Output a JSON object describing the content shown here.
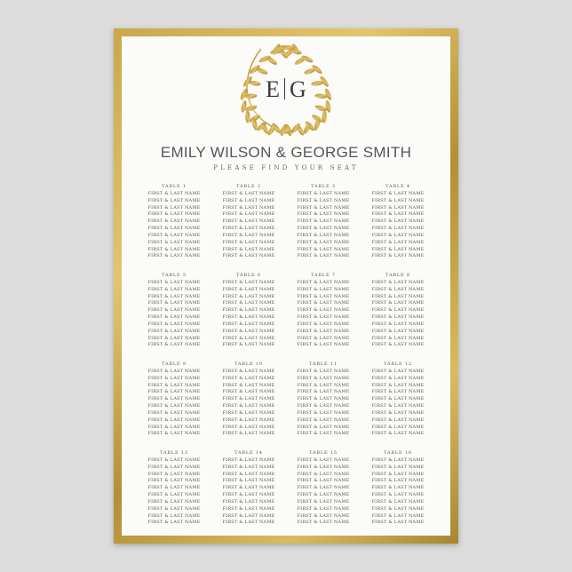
{
  "monogram": {
    "left": "E",
    "right": "G"
  },
  "couple": "EMILY WILSON & GEORGE SMITH",
  "subtitle": "PLEASE FIND YOUR SEAT",
  "colors": {
    "gold": "#c9a84a",
    "text": "#555555",
    "paper": "#fbfbf9"
  },
  "tables": [
    {
      "title": "Table 1",
      "guests": [
        "First & Last Name",
        "First & Last Name",
        "First & Last Name",
        "First & Last Name",
        "First & Last Name",
        "First & Last Name",
        "First & Last Name",
        "First & Last Name",
        "First & Last Name",
        "First & Last Name"
      ]
    },
    {
      "title": "Table 2",
      "guests": [
        "First & Last Name",
        "First & Last Name",
        "First & Last Name",
        "First & Last Name",
        "First & Last Name",
        "First & Last Name",
        "First & Last Name",
        "First & Last Name",
        "First & Last Name",
        "First & Last Name"
      ]
    },
    {
      "title": "Table 3",
      "guests": [
        "First & Last Name",
        "First & Last Name",
        "First & Last Name",
        "First & Last Name",
        "First & Last Name",
        "First & Last Name",
        "First & Last Name",
        "First & Last Name",
        "First & Last Name",
        "First & Last Name"
      ]
    },
    {
      "title": "Table 4",
      "guests": [
        "First & Last Name",
        "First & Last Name",
        "First & Last Name",
        "First & Last Name",
        "First & Last Name",
        "First & Last Name",
        "First & Last Name",
        "First & Last Name",
        "First & Last Name",
        "First & Last Name"
      ]
    },
    {
      "title": "Table 5",
      "guests": [
        "First & Last Name",
        "First & Last Name",
        "First & Last Name",
        "First & Last Name",
        "First & Last Name",
        "First & Last Name",
        "First & Last Name",
        "First & Last Name",
        "First & Last Name",
        "First & Last Name"
      ]
    },
    {
      "title": "Table 6",
      "guests": [
        "First & Last Name",
        "First & Last Name",
        "First & Last Name",
        "First & Last Name",
        "First & Last Name",
        "First & Last Name",
        "First & Last Name",
        "First & Last Name",
        "First & Last Name",
        "First & Last Name"
      ]
    },
    {
      "title": "Table 7",
      "guests": [
        "First & Last Name",
        "First & Last Name",
        "First & Last Name",
        "First & Last Name",
        "First & Last Name",
        "First & Last Name",
        "First & Last Name",
        "First & Last Name",
        "First & Last Name",
        "First & Last Name"
      ]
    },
    {
      "title": "Table 8",
      "guests": [
        "First & Last Name",
        "First & Last Name",
        "First & Last Name",
        "First & Last Name",
        "First & Last Name",
        "First & Last Name",
        "First & Last Name",
        "First & Last Name",
        "First & Last Name",
        "First & Last Name"
      ]
    },
    {
      "title": "Table 9",
      "guests": [
        "First & Last Name",
        "First & Last Name",
        "First & Last Name",
        "First & Last Name",
        "First & Last Name",
        "First & Last Name",
        "First & Last Name",
        "First & Last Name",
        "First & Last Name",
        "First & Last Name"
      ]
    },
    {
      "title": "Table 10",
      "guests": [
        "First & Last Name",
        "First & Last Name",
        "First & Last Name",
        "First & Last Name",
        "First & Last Name",
        "First & Last Name",
        "First & Last Name",
        "First & Last Name",
        "First & Last Name",
        "First & Last Name"
      ]
    },
    {
      "title": "Table 11",
      "guests": [
        "First & Last Name",
        "First & Last Name",
        "First & Last Name",
        "First & Last Name",
        "First & Last Name",
        "First & Last Name",
        "First & Last Name",
        "First & Last Name",
        "First & Last Name",
        "First & Last Name"
      ]
    },
    {
      "title": "Table 12",
      "guests": [
        "First & Last Name",
        "First & Last Name",
        "First & Last Name",
        "First & Last Name",
        "First & Last Name",
        "First & Last Name",
        "First & Last Name",
        "First & Last Name",
        "First & Last Name",
        "First & Last Name"
      ]
    },
    {
      "title": "Table 13",
      "guests": [
        "First & Last Name",
        "First & Last Name",
        "First & Last Name",
        "First & Last Name",
        "First & Last Name",
        "First & Last Name",
        "First & Last Name",
        "First & Last Name",
        "First & Last Name",
        "First & Last Name"
      ]
    },
    {
      "title": "Table 14",
      "guests": [
        "First & Last Name",
        "First & Last Name",
        "First & Last Name",
        "First & Last Name",
        "First & Last Name",
        "First & Last Name",
        "First & Last Name",
        "First & Last Name",
        "First & Last Name",
        "First & Last Name"
      ]
    },
    {
      "title": "Table 15",
      "guests": [
        "First & Last Name",
        "First & Last Name",
        "First & Last Name",
        "First & Last Name",
        "First & Last Name",
        "First & Last Name",
        "First & Last Name",
        "First & Last Name",
        "First & Last Name",
        "First & Last Name"
      ]
    },
    {
      "title": "Table 16",
      "guests": [
        "First & Last Name",
        "First & Last Name",
        "First & Last Name",
        "First & Last Name",
        "First & Last Name",
        "First & Last Name",
        "First & Last Name",
        "First & Last Name",
        "First & Last Name",
        "First & Last Name"
      ]
    }
  ]
}
